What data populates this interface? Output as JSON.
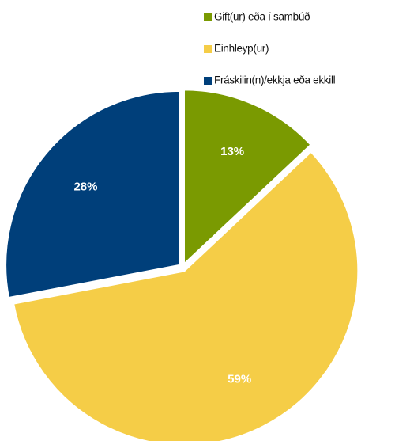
{
  "chart_data": {
    "type": "pie",
    "series": [
      {
        "name": "Gift(ur) eða í sambúð",
        "color": "#7a9a01",
        "values": [
          13
        ],
        "value_labels": [
          "13%"
        ]
      },
      {
        "name": "Einhleyp(ur)",
        "color": "#f5cd47",
        "values": [
          59
        ],
        "value_labels": [
          "59%"
        ]
      },
      {
        "name": "Fráskilin(n)/ekkja eða ekkill",
        "color": "#003f7a",
        "values": [
          28
        ],
        "value_labels": [
          "28%"
        ]
      }
    ],
    "legend": "top-right"
  }
}
